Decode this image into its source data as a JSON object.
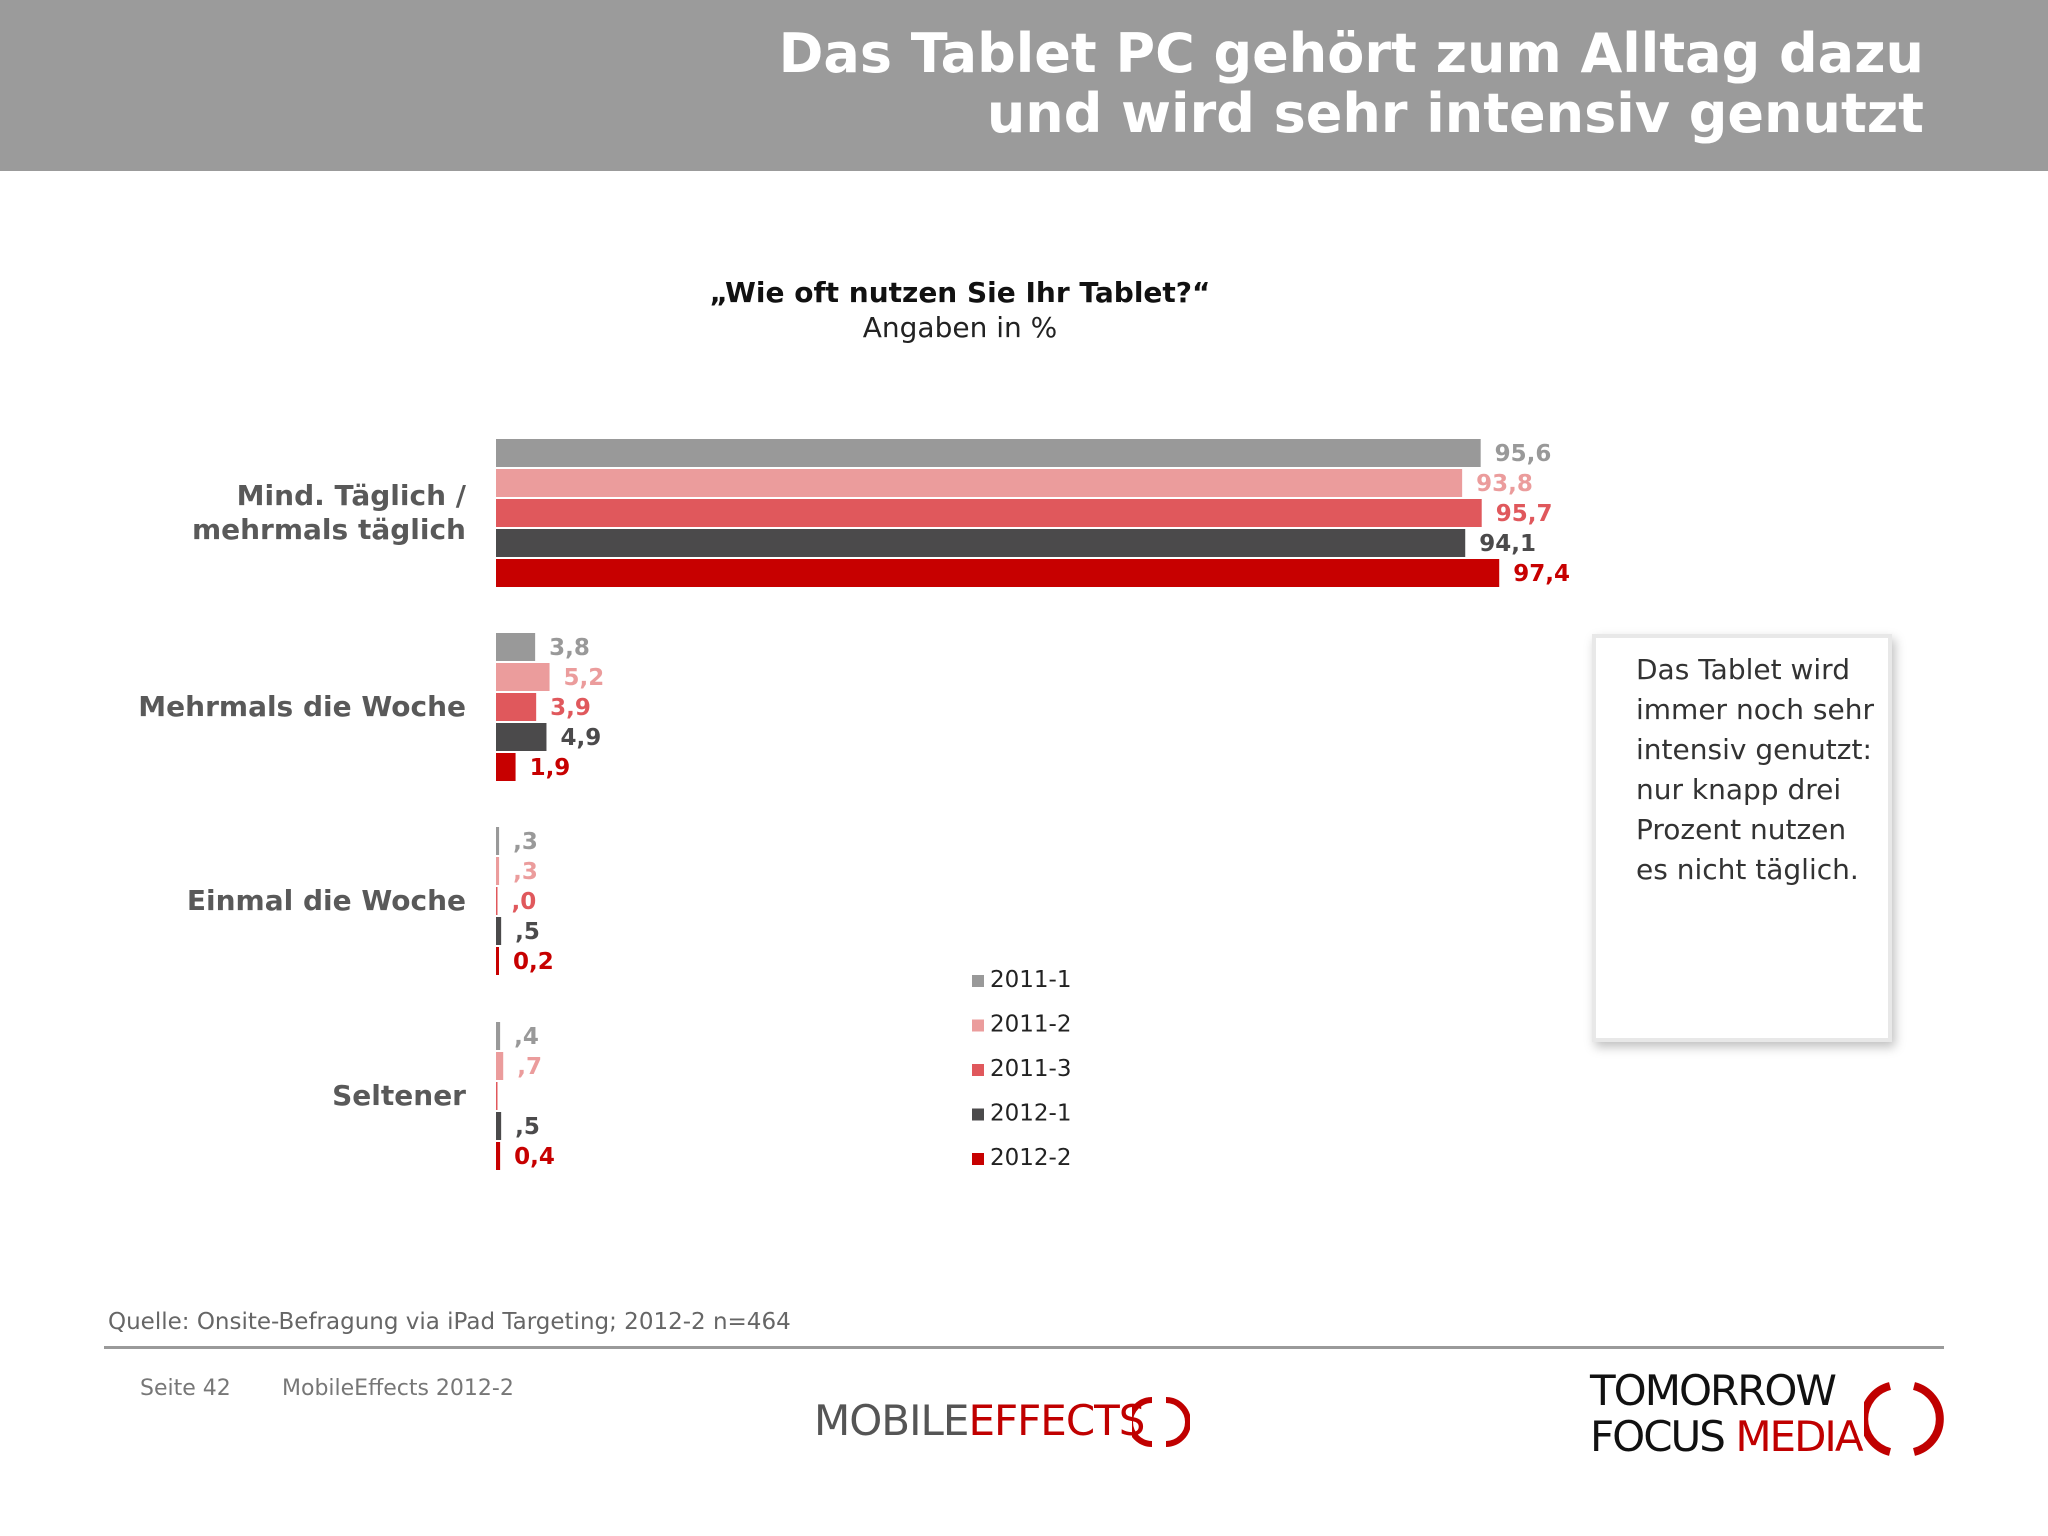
{
  "header": {
    "title_line1": "Das Tablet PC gehört zum Alltag dazu",
    "title_line2": "und wird sehr intensiv genutzt"
  },
  "question": {
    "text": "„Wie oft nutzen Sie Ihr Tablet?“",
    "unit": "Angaben in %"
  },
  "chart_data": {
    "type": "bar",
    "orientation": "horizontal",
    "categories": [
      "Mind. Täglich /\nmehrmals täglich",
      "Mehrmals die Woche",
      "Einmal die Woche",
      "Seltener"
    ],
    "series": [
      {
        "name": "2011-1",
        "color": "#999999",
        "values": [
          95.6,
          3.8,
          0.3,
          0.4
        ],
        "labels": [
          "95,6",
          "3,8",
          ",3",
          ",4"
        ]
      },
      {
        "name": "2011-2",
        "color": "#eb9c9c",
        "values": [
          93.8,
          5.2,
          0.3,
          0.7
        ],
        "labels": [
          "93,8",
          "5,2",
          ",3",
          ",7"
        ]
      },
      {
        "name": "2011-3",
        "color": "#e0585c",
        "values": [
          95.7,
          3.9,
          0.0,
          0.0
        ],
        "labels": [
          "95,7",
          "3,9",
          ",0",
          ""
        ]
      },
      {
        "name": "2012-1",
        "color": "#4b4a4b",
        "values": [
          94.1,
          4.9,
          0.5,
          0.5
        ],
        "labels": [
          "94,1",
          "4,9",
          ",5",
          ",5"
        ]
      },
      {
        "name": "2012-2",
        "color": "#c70000",
        "values": [
          97.4,
          1.9,
          0.2,
          0.4
        ],
        "labels": [
          "97,4",
          "1,9",
          "0,2",
          "0,4"
        ]
      }
    ],
    "xlim": [
      0,
      100
    ],
    "legend": "bottom-center",
    "grid": false
  },
  "note": {
    "text": "Das Tablet wird immer noch sehr intensiv genutzt: nur knapp drei Prozent nutzen es nicht täglich."
  },
  "footer": {
    "source": "Quelle: Onsite-Befragung via iPad Targeting; 2012-2 n=464",
    "page": "Seite 42",
    "publication": "MobileEffects 2012-2",
    "logo_left_part1": "MOBILE",
    "logo_left_part2": "EFFECTS",
    "logo_right_line1": "TOMORROW",
    "logo_right_line2a": "FOCUS",
    "logo_right_line2b": "MEDIA"
  }
}
